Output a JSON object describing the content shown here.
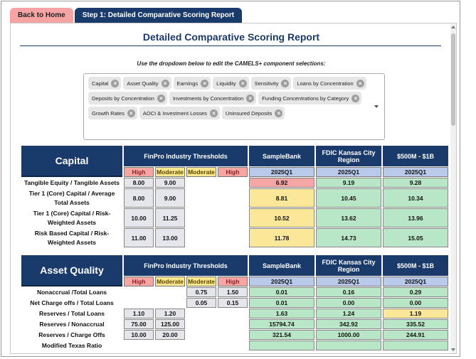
{
  "tabs": {
    "home": "Back to Home",
    "step": "Step 1: Detailed Comparative Scoring Report"
  },
  "report": {
    "title": "Detailed Comparative Scoring Report",
    "instruction": "Use the dropdown below to edit the CAMELS+ component selections:",
    "chips": [
      "Capital",
      "Asset Quality",
      "Earnings",
      "Liquidity",
      "Sensitivity",
      "Loans by Concentration",
      "Deposits by Concentration",
      "Investments by Concentration",
      "Funding Concentrations by Category",
      "Growth Rates",
      "AOCI & Investment Losses",
      "Uninsured Deposits"
    ]
  },
  "headers": {
    "thresholds": "FinPro Industry Thresholds",
    "bank": "SampleBank",
    "region": "FDIC Kansas City Region",
    "peer": "$500M - $1B",
    "high": "High",
    "moderate": "Moderate",
    "period": "2025Q1"
  },
  "capital": {
    "name": "Capital",
    "rows": [
      {
        "label": "Tangible Equity / Tangible Assets",
        "t1": "8.00",
        "t2": "9.00",
        "t3": "",
        "t4": "",
        "bank": "6.92",
        "bank_color": "r",
        "region": "9.19",
        "region_color": "g",
        "peer": "9.28",
        "peer_color": "g"
      },
      {
        "label": "Tier 1 (Core) Capital / Average Total Assets",
        "t1": "8.00",
        "t2": "9.00",
        "t3": "",
        "t4": "",
        "bank": "8.81",
        "bank_color": "y",
        "region": "10.45",
        "region_color": "g",
        "peer": "10.34",
        "peer_color": "g"
      },
      {
        "label": "Tier 1 (Core) Capital / Risk-Weighted Assets",
        "t1": "10.00",
        "t2": "11.25",
        "t3": "",
        "t4": "",
        "bank": "10.52",
        "bank_color": "y",
        "region": "13.62",
        "region_color": "g",
        "peer": "13.96",
        "peer_color": "g"
      },
      {
        "label": "Risk Based Capital / Risk-Weighted Assets",
        "t1": "11.00",
        "t2": "13.00",
        "t3": "",
        "t4": "",
        "bank": "11.78",
        "bank_color": "y",
        "region": "14.73",
        "region_color": "g",
        "peer": "15.05",
        "peer_color": "g"
      }
    ]
  },
  "asset_quality": {
    "name": "Asset Quality",
    "rows": [
      {
        "label": "Nonaccrual /Total Loans",
        "t1": "",
        "t2": "",
        "t3": "0.75",
        "t4": "1.50",
        "bank": "0.01",
        "bank_color": "g",
        "region": "0.16",
        "region_color": "g",
        "peer": "0.29",
        "peer_color": "g"
      },
      {
        "label": "Net Charge offs / Total Loans",
        "t1": "",
        "t2": "",
        "t3": "0.05",
        "t4": "0.15",
        "bank": "0.01",
        "bank_color": "g",
        "region": "0.00",
        "region_color": "g",
        "peer": "0.00",
        "peer_color": "g"
      },
      {
        "label": "Reserves / Total Loans",
        "t1": "1.10",
        "t2": "1.20",
        "t3": "",
        "t4": "",
        "bank": "1.63",
        "bank_color": "g",
        "region": "1.24",
        "region_color": "g",
        "peer": "1.19",
        "peer_color": "y"
      },
      {
        "label": "Reserves / Nonaccrual",
        "t1": "75.00",
        "t2": "125.00",
        "t3": "",
        "t4": "",
        "bank": "15794.74",
        "bank_color": "g",
        "region": "342.92",
        "region_color": "g",
        "peer": "335.52",
        "peer_color": "g"
      },
      {
        "label": "Reserves / Charge Offs",
        "t1": "10.00",
        "t2": "20.00",
        "t3": "",
        "t4": "",
        "bank": "321.54",
        "bank_color": "g",
        "region": "1000.00",
        "region_color": "g",
        "peer": "244.91",
        "peer_color": "g"
      },
      {
        "label": "Modified Texas Ratio",
        "t1": "",
        "t2": "",
        "t3": "",
        "t4": "",
        "bank": "",
        "bank_color": "g",
        "region": "",
        "region_color": "g",
        "peer": "",
        "peer_color": "g"
      }
    ]
  }
}
